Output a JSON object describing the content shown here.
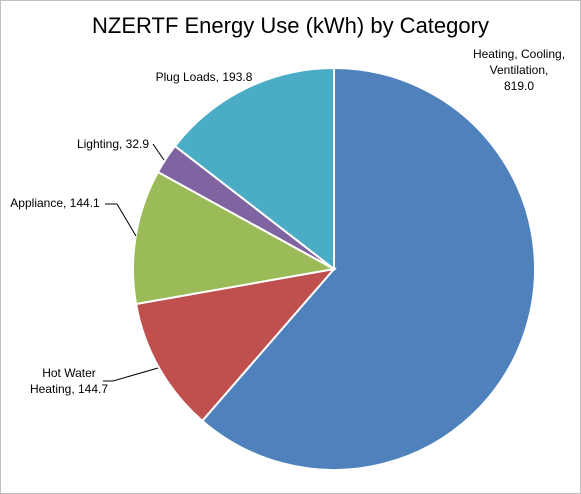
{
  "chart_data": {
    "type": "pie",
    "title": "NZERTF Energy Use (kWh) by Category",
    "slices": [
      {
        "name": "Heating, Cooling, Ventilation",
        "value": 819.0,
        "color": "#4F81BD",
        "label_lines": [
          "Heating, Cooling,",
          "Ventilation,",
          "819.0"
        ]
      },
      {
        "name": "Hot Water Heating",
        "value": 144.7,
        "color": "#C0504D",
        "label_lines": [
          "Hot Water",
          "Heating, 144.7"
        ]
      },
      {
        "name": "Appliance",
        "value": 144.1,
        "color": "#9BBB59",
        "label_lines": [
          "Appliance, 144.1"
        ]
      },
      {
        "name": "Lighting",
        "value": 32.9,
        "color": "#8064A2",
        "label_lines": [
          "Lighting, 32.9"
        ]
      },
      {
        "name": "Plug Loads",
        "value": 193.8,
        "color": "#4BACC6",
        "label_lines": [
          "Plug Loads, 193.8"
        ]
      }
    ],
    "start_angle": "12 o'clock",
    "direction": "clockwise",
    "legend": "none"
  }
}
